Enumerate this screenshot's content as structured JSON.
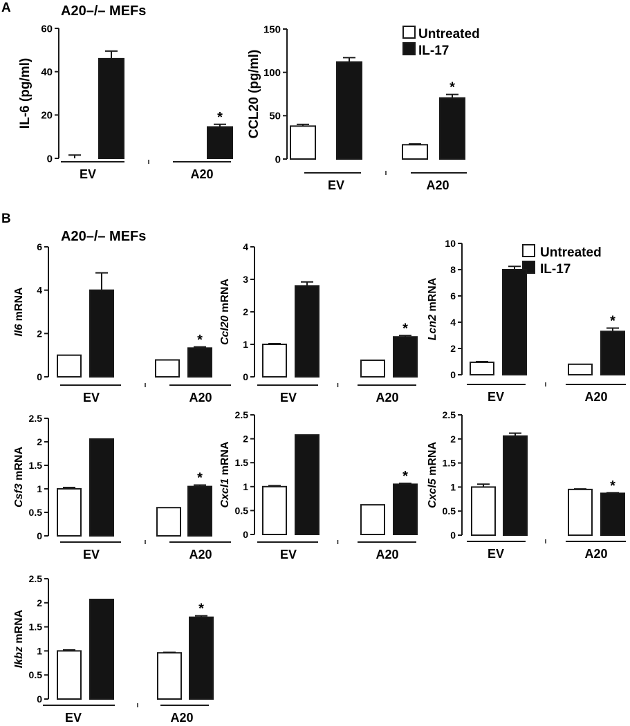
{
  "figure": {
    "panel_a_label": "A",
    "panel_b_label": "B",
    "panel_a_title": "A20–/– MEFs",
    "panel_b_title": "A20–/– MEFs",
    "legend_untreated": "Untreated",
    "legend_il17": "IL-17",
    "colors": {
      "untreated": "#ffffff",
      "il17": "#141414",
      "axis": "#1a1a1a"
    }
  },
  "chart_data": [
    {
      "type": "bar",
      "ylabel": "IL-6 (pg/ml)",
      "ylabel_italic": "",
      "ylabel_rest": "",
      "categories": [
        "EV",
        "A20"
      ],
      "yticks": [
        "0",
        "20",
        "40",
        "60"
      ],
      "ylim": [
        0,
        60
      ],
      "series": [
        {
          "name": "Untreated",
          "values": [
            0,
            0
          ],
          "errors": [
            1.5,
            0
          ]
        },
        {
          "name": "IL-17",
          "values": [
            46,
            14.5
          ],
          "errors": [
            3.5,
            1.2
          ]
        }
      ],
      "significance": "*"
    },
    {
      "type": "bar",
      "ylabel": "CCL20 (pg/ml)",
      "ylabel_italic": "",
      "ylabel_rest": "",
      "categories": [
        "EV",
        "A20"
      ],
      "yticks": [
        "0",
        "50",
        "100",
        "150"
      ],
      "ylim": [
        0,
        150
      ],
      "series": [
        {
          "name": "Untreated",
          "values": [
            38,
            16.5
          ],
          "errors": [
            2,
            1
          ]
        },
        {
          "name": "IL-17",
          "values": [
            112,
            70.5
          ],
          "errors": [
            5,
            4
          ]
        }
      ],
      "significance": "*"
    },
    {
      "type": "bar",
      "ylabel": "",
      "ylabel_italic": "Il6",
      "ylabel_rest": " mRNA",
      "categories": [
        "EV",
        "A20"
      ],
      "yticks": [
        "0",
        "2",
        "4",
        "6"
      ],
      "ylim": [
        0,
        6
      ],
      "series": [
        {
          "name": "Untreated",
          "values": [
            1.0,
            0.78
          ],
          "errors": [
            0,
            0
          ]
        },
        {
          "name": "IL-17",
          "values": [
            4.0,
            1.33
          ],
          "errors": [
            0.8,
            0.05
          ]
        }
      ],
      "significance": "*"
    },
    {
      "type": "bar",
      "ylabel": "",
      "ylabel_italic": "Ccl20",
      "ylabel_rest": " mRNA",
      "categories": [
        "EV",
        "A20"
      ],
      "yticks": [
        "0",
        "1",
        "2",
        "3",
        "4"
      ],
      "ylim": [
        0,
        4
      ],
      "series": [
        {
          "name": "Untreated",
          "values": [
            1.0,
            0.51
          ],
          "errors": [
            0.02,
            0
          ]
        },
        {
          "name": "IL-17",
          "values": [
            2.8,
            1.23
          ],
          "errors": [
            0.12,
            0.04
          ]
        }
      ],
      "significance": "*"
    },
    {
      "type": "bar",
      "ylabel": "",
      "ylabel_italic": "Lcn2",
      "ylabel_rest": " mRNA",
      "categories": [
        "EV",
        "A20"
      ],
      "yticks": [
        "0",
        "2",
        "4",
        "6",
        "8",
        "10"
      ],
      "ylim": [
        0,
        10
      ],
      "series": [
        {
          "name": "Untreated",
          "values": [
            0.95,
            0.8
          ],
          "errors": [
            0.05,
            0
          ]
        },
        {
          "name": "IL-17",
          "values": [
            8.0,
            3.3
          ],
          "errors": [
            0.25,
            0.25
          ]
        }
      ],
      "significance": "*"
    },
    {
      "type": "bar",
      "ylabel": "",
      "ylabel_italic": "Csf3",
      "ylabel_rest": " mRNA",
      "categories": [
        "EV",
        "A20"
      ],
      "yticks": [
        "0",
        "0.5",
        "1",
        "1.5",
        "2",
        "2.5"
      ],
      "ylim": [
        0,
        2.5
      ],
      "series": [
        {
          "name": "Untreated",
          "values": [
            1.0,
            0.6
          ],
          "errors": [
            0.03,
            0
          ]
        },
        {
          "name": "IL-17",
          "values": [
            2.06,
            1.05
          ],
          "errors": [
            0,
            0.03
          ]
        }
      ],
      "significance": "*"
    },
    {
      "type": "bar",
      "ylabel": "",
      "ylabel_italic": "Cxcl1",
      "ylabel_rest": " mRNA",
      "categories": [
        "EV",
        "A20"
      ],
      "yticks": [
        "0",
        "0.5",
        "1",
        "1.5",
        "2",
        "2.5"
      ],
      "ylim": [
        0,
        2.5
      ],
      "series": [
        {
          "name": "Untreated",
          "values": [
            1.0,
            0.62
          ],
          "errors": [
            0.02,
            0
          ]
        },
        {
          "name": "IL-17",
          "values": [
            2.08,
            1.05
          ],
          "errors": [
            0,
            0.02
          ]
        }
      ],
      "significance": "*"
    },
    {
      "type": "bar",
      "ylabel": "",
      "ylabel_italic": "Cxcl5",
      "ylabel_rest": " mRNA",
      "categories": [
        "EV",
        "A20"
      ],
      "yticks": [
        "0",
        "0.5",
        "1",
        "1.5",
        "2",
        "2.5"
      ],
      "ylim": [
        0,
        2.5
      ],
      "series": [
        {
          "name": "Untreated",
          "values": [
            1.0,
            0.95
          ],
          "errors": [
            0.06,
            0.01
          ]
        },
        {
          "name": "IL-17",
          "values": [
            2.06,
            0.87
          ],
          "errors": [
            0.06,
            0.01
          ]
        }
      ],
      "significance": "*"
    },
    {
      "type": "bar",
      "ylabel": "",
      "ylabel_italic": "Ikbz",
      "ylabel_rest": " mRNA",
      "categories": [
        "EV",
        "A20"
      ],
      "yticks": [
        "0",
        "0.5",
        "1",
        "1.5",
        "2",
        "2.5"
      ],
      "ylim": [
        0,
        2.5
      ],
      "series": [
        {
          "name": "Untreated",
          "values": [
            1.0,
            0.96
          ],
          "errors": [
            0.02,
            0.01
          ]
        },
        {
          "name": "IL-17",
          "values": [
            2.07,
            1.7
          ],
          "errors": [
            0,
            0.03
          ]
        }
      ],
      "significance": "*"
    }
  ]
}
